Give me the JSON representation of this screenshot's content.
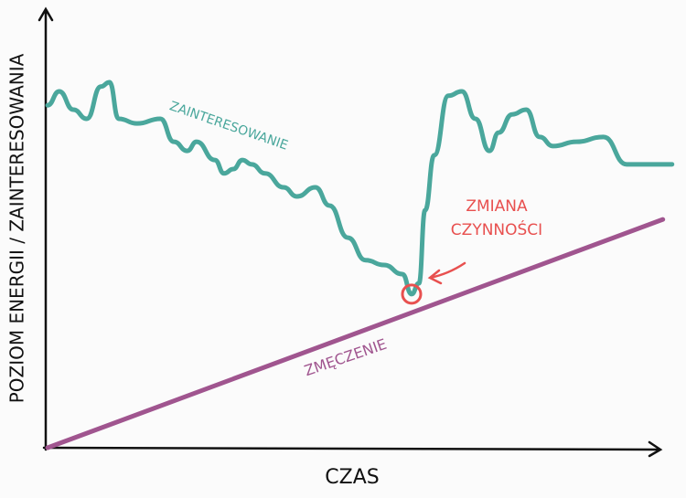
{
  "chart_data": {
    "type": "line",
    "x_label": "CZAS",
    "y_label": "POZIOM ENERGII / ZAINTERESOWANIA",
    "xlim": [
      0,
      100
    ],
    "ylim": [
      0,
      100
    ],
    "annotation": [
      "ZMIANA",
      "CZYNNOŚCI"
    ],
    "annotation_color": "#e8504f",
    "series": [
      {
        "name": "ZAINTERESOWANIE",
        "color": "#4aa79c",
        "x": [
          0.3,
          2.2,
          4.5,
          6.7,
          9.0,
          10.4,
          11.9,
          14.9,
          18.7,
          20.9,
          23.1,
          24.6,
          27.6,
          29.1,
          30.6,
          32.1,
          33.6,
          35.8,
          38.8,
          41.0,
          44.0,
          46.3,
          49.3,
          52.2,
          55.2,
          58.2,
          59.7,
          60.9,
          61.9,
          63.4,
          65.7,
          67.9,
          70.1,
          72.4,
          73.9,
          76.1,
          78.4,
          80.6,
          82.8,
          86.6,
          91.0,
          94.8,
          97.8,
          102.2
        ],
        "values": [
          78.9,
          82.1,
          77.9,
          75.8,
          83.2,
          84.2,
          75.8,
          74.7,
          75.8,
          70.5,
          68.4,
          70.5,
          66.3,
          63.2,
          64.2,
          66.3,
          65.3,
          63.2,
          60.0,
          57.9,
          60.0,
          55.8,
          48.4,
          43.2,
          42.1,
          40.0,
          35.4,
          37.9,
          54.7,
          67.4,
          81.1,
          82.1,
          75.8,
          68.4,
          72.6,
          76.8,
          77.9,
          71.6,
          69.5,
          70.5,
          71.6,
          65.3,
          65.3,
          65.3
        ]
      },
      {
        "name": "ZMĘCZENIE",
        "color": "#a0558f",
        "x": [
          0.3,
          100.7
        ],
        "values": [
          0,
          52.6
        ]
      }
    ]
  }
}
